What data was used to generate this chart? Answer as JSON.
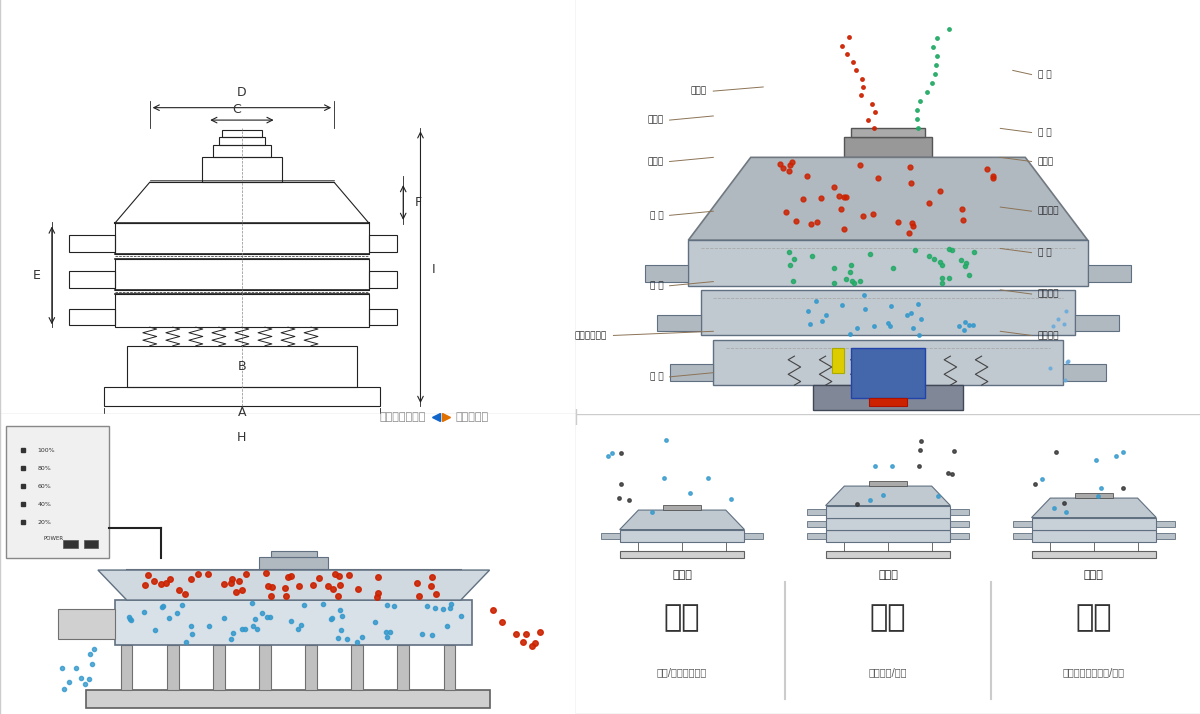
{
  "bg_color": "#ffffff",
  "dim_labels": [
    "A",
    "B",
    "C",
    "D",
    "E",
    "F",
    "H",
    "I"
  ],
  "right_labels_left": [
    "进料口",
    "防尘盖",
    "出料口",
    "束 环",
    "弹 簧",
    "运输固定螺栓",
    "机 座"
  ],
  "right_labels_right": [
    "筛 网",
    "网 架",
    "加重块",
    "上部重锤",
    "筛 盘",
    "振动电机",
    "下部重锤"
  ],
  "bottom_labels": [
    "单层式",
    "三层式",
    "双层式"
  ],
  "bottom_chinese": [
    "分级",
    "过滤",
    "除杂"
  ],
  "bottom_desc": [
    "颗粒/粉末准确分级",
    "去除异物/结块",
    "去除液体中的颗粒/异物"
  ],
  "top_left_nav": "外形尺寸示意图",
  "top_right_nav": "结构示意图",
  "line_color": "#666666",
  "dim_color": "#333333",
  "label_color": "#8b7355",
  "red_dot": "#cc2200",
  "blue_dot": "#3399cc",
  "green_dot": "#22aa66",
  "arrow_blue": "#1166cc",
  "highlight_orange": "#e07000"
}
